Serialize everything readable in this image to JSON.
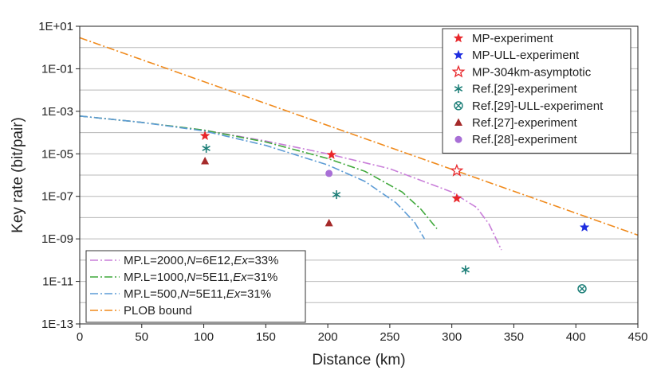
{
  "chart_data": {
    "type": "scatter",
    "xlabel": "Distance (km)",
    "ylabel": "Key rate (bit/pair)",
    "xlim": [
      0,
      450
    ],
    "ylim": [
      1e-13,
      10
    ],
    "yscale": "log",
    "grid": "horizontal",
    "x_ticks": [
      "0",
      "50",
      "100",
      "150",
      "200",
      "250",
      "300",
      "350",
      "400",
      "450"
    ],
    "y_ticks": [
      "1E-13",
      "1E-11",
      "1E-09",
      "1E-07",
      "1E-05",
      "1E-03",
      "1E-01",
      "1E+01"
    ],
    "legend_top": {
      "position": "top-right",
      "entries": [
        {
          "label": "MP-experiment",
          "marker": "star",
          "color": "#e8262a"
        },
        {
          "label": "MP-ULL-experiment",
          "marker": "star",
          "color": "#1f2ee0"
        },
        {
          "label": "MP-304km-asymptotic",
          "marker": "star-open",
          "color": "#e8262a"
        },
        {
          "label": "Ref.[29]-experiment",
          "marker": "asterisk",
          "color": "#1d7f78"
        },
        {
          "label": "Ref.[29]-ULL-experiment",
          "marker": "circle-x",
          "color": "#1d7f78"
        },
        {
          "label": "Ref.[27]-experiment",
          "marker": "triangle",
          "color": "#a52a2a"
        },
        {
          "label": "Ref.[28]-experiment",
          "marker": "circle",
          "color": "#a86fd6"
        }
      ]
    },
    "legend_bottom": {
      "position": "bottom-left",
      "entries": [
        {
          "pre": "MP.L=2000,",
          "n": "N",
          "mid": "=6E12,",
          "ex": "Ex",
          "post": "=33%",
          "color": "#c97fd9",
          "dash": "10,3,2,3"
        },
        {
          "pre": "MP.L=1000,",
          "n": "N",
          "mid": "=5E11,",
          "ex": "Ex",
          "post": "=31%",
          "color": "#3fa83a",
          "dash": "10,3,2,3"
        },
        {
          "pre": "MP.L=500,",
          "n": "N",
          "mid": "=5E11,",
          "ex": "Ex",
          "post": "=31%",
          "color": "#5b9bd5",
          "dash": "10,3,2,3"
        },
        {
          "label": "PLOB bound",
          "color": "#f08a1c",
          "dash": "10,3,2,3"
        }
      ]
    },
    "lines": [
      {
        "name": "MP.L=2000",
        "color": "#c97fd9",
        "points": [
          [
            0,
            0.0006
          ],
          [
            50,
            0.0003
          ],
          [
            100,
            0.00013
          ],
          [
            150,
            4e-05
          ],
          [
            200,
            1e-05
          ],
          [
            250,
            2e-06
          ],
          [
            300,
            1.6e-07
          ],
          [
            320,
            3e-08
          ],
          [
            330,
            5e-09
          ],
          [
            340,
            3e-10
          ]
        ]
      },
      {
        "name": "MP.L=1000",
        "color": "#3fa83a",
        "points": [
          [
            0,
            0.0006
          ],
          [
            50,
            0.0003
          ],
          [
            100,
            0.00013
          ],
          [
            150,
            3.6e-05
          ],
          [
            200,
            6e-06
          ],
          [
            230,
            1.5e-06
          ],
          [
            260,
            1.6e-07
          ],
          [
            275,
            2.5e-08
          ],
          [
            288,
            3e-09
          ]
        ]
      },
      {
        "name": "MP.L=500",
        "color": "#5b9bd5",
        "points": [
          [
            0,
            0.0006
          ],
          [
            50,
            0.0003
          ],
          [
            100,
            0.00012
          ],
          [
            150,
            2.5e-05
          ],
          [
            200,
            3e-06
          ],
          [
            230,
            5e-07
          ],
          [
            255,
            5e-08
          ],
          [
            270,
            6e-09
          ],
          [
            278,
            1e-09
          ]
        ]
      },
      {
        "name": "PLOB bound",
        "color": "#f08a1c",
        "points": [
          [
            0,
            2.9
          ],
          [
            450,
            1.5e-09
          ]
        ]
      }
    ],
    "points": [
      {
        "series": "MP-experiment",
        "marker": "star",
        "color": "#e8262a",
        "x": [
          101,
          203,
          304
        ],
        "y": [
          7e-05,
          9e-06,
          8e-08
        ]
      },
      {
        "series": "MP-ULL-experiment",
        "marker": "star",
        "color": "#1f2ee0",
        "x": [
          407
        ],
        "y": [
          3.5e-09
        ]
      },
      {
        "series": "MP-304km-asymptotic",
        "marker": "star-open",
        "color": "#e8262a",
        "x": [
          304
        ],
        "y": [
          1.6e-06
        ]
      },
      {
        "series": "Ref.[29]-experiment",
        "marker": "asterisk",
        "color": "#1d7f78",
        "x": [
          102,
          207,
          311
        ],
        "y": [
          1.8e-05,
          1.2e-07,
          3.5e-11
        ]
      },
      {
        "series": "Ref.[29]-ULL-experiment",
        "marker": "circle-x",
        "color": "#1d7f78",
        "x": [
          405
        ],
        "y": [
          4.5e-12
        ]
      },
      {
        "series": "Ref.[27]-experiment",
        "marker": "triangle",
        "color": "#a52a2a",
        "x": [
          101,
          201
        ],
        "y": [
          4.5e-06,
          5.5e-09
        ]
      },
      {
        "series": "Ref.[28]-experiment",
        "marker": "circle",
        "color": "#a86fd6",
        "x": [
          201
        ],
        "y": [
          1.2e-06
        ]
      }
    ]
  }
}
